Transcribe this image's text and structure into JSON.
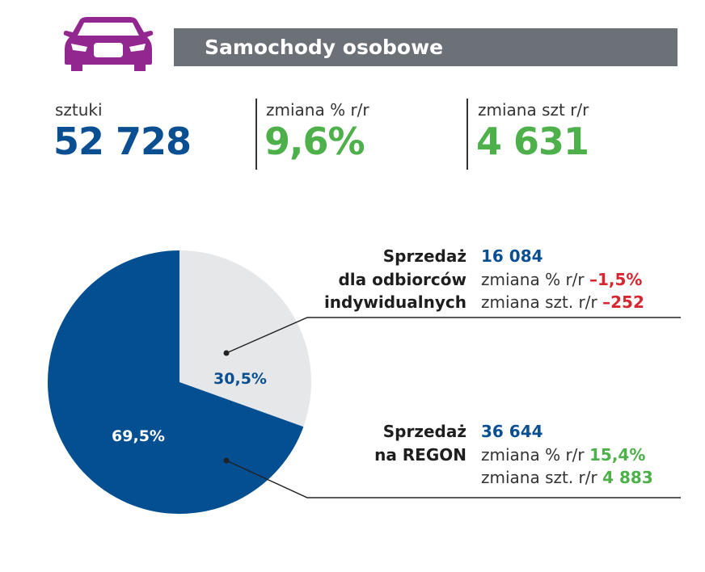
{
  "header": {
    "title": "Samochody osobowe",
    "icon": "car-icon",
    "icon_color": "#92278f",
    "bar_color": "#6b7177"
  },
  "stats": [
    {
      "label": "sztuki",
      "value": "52 728",
      "color": "#0a4f92"
    },
    {
      "label": "zmiana % r/r",
      "value": "9,6%",
      "color": "#4db04a"
    },
    {
      "label": "zmiana szt r/r",
      "value": "4 631",
      "color": "#4db04a"
    }
  ],
  "chart_data": {
    "type": "pie",
    "slices": [
      {
        "label": "Sprzedaż dla odbiorców indywidualnych",
        "value": 30.5,
        "display": "30,5%",
        "color": "#e6e7e8",
        "label_color": "#0a4f92"
      },
      {
        "label": "Sprzedaż na REGON",
        "value": 69.5,
        "display": "69,5%",
        "color": "#034f92",
        "label_color": "#ffffff"
      }
    ]
  },
  "callouts": [
    {
      "title_lines": [
        "Sprzedaż",
        "dla odbiorców",
        "indywidualnych"
      ],
      "units": "16 084",
      "pct_label": "zmiana % r/r",
      "pct_value": "–1,5%",
      "szt_label": "zmiana szt. r/r",
      "szt_value": "–252",
      "trend": "negative"
    },
    {
      "title_lines": [
        "Sprzedaż",
        "na REGON"
      ],
      "units": "36 644",
      "pct_label": "zmiana % r/r",
      "pct_value": "15,4%",
      "szt_label": "zmiana szt. r/r",
      "szt_value": "4 883",
      "trend": "positive"
    }
  ]
}
